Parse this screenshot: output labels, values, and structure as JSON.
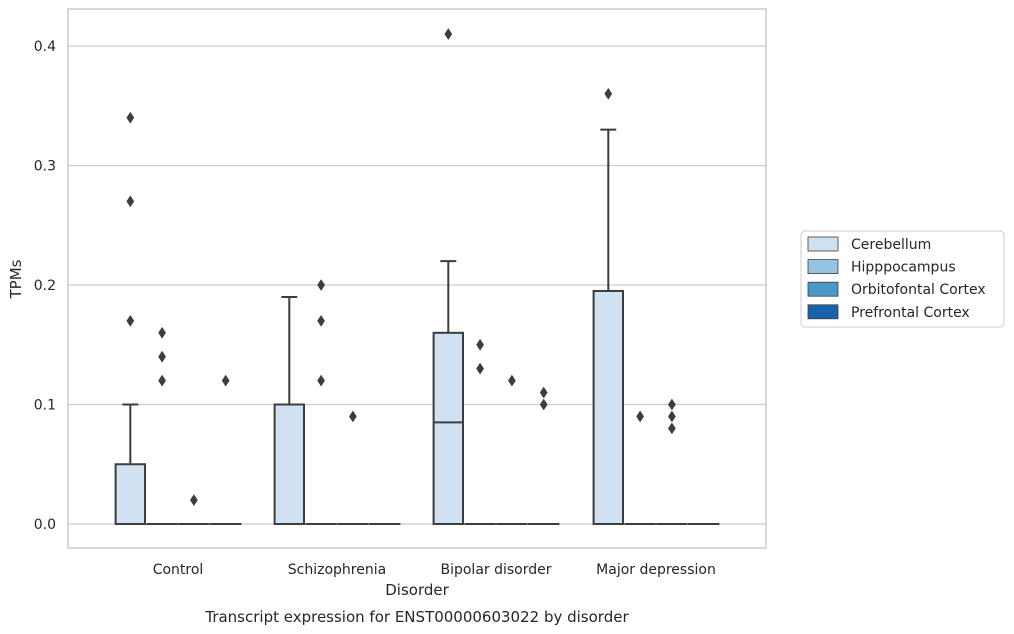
{
  "chart_data": {
    "type": "box",
    "title": "",
    "caption": "Transcript expression for ENST00000603022 by disorder",
    "xlabel": "Disorder",
    "ylabel": "TPMs",
    "ylim": [
      -0.02,
      0.43
    ],
    "yticks": [
      0.0,
      0.1,
      0.2,
      0.3,
      0.4
    ],
    "ytick_labels": [
      "0.0",
      "0.1",
      "0.2",
      "0.3",
      "0.4"
    ],
    "grid": "horizontal",
    "legend_position": "right",
    "categories": [
      "Control",
      "Schizophrenia",
      "Bipolar disorder",
      "Major depression"
    ],
    "series": [
      {
        "name": "Cerebellum",
        "color": "#d0e1f2",
        "boxes": [
          {
            "q1": 0.0,
            "median": 0.0,
            "q3": 0.05,
            "whisker_low": 0.0,
            "whisker_high": 0.1,
            "outliers": [
              0.34,
              0.27,
              0.17
            ]
          },
          {
            "q1": 0.0,
            "median": 0.0,
            "q3": 0.1,
            "whisker_low": 0.0,
            "whisker_high": 0.19,
            "outliers": []
          },
          {
            "q1": 0.0,
            "median": 0.085,
            "q3": 0.16,
            "whisker_low": 0.0,
            "whisker_high": 0.22,
            "outliers": [
              0.41
            ]
          },
          {
            "q1": 0.0,
            "median": 0.0,
            "q3": 0.195,
            "whisker_low": 0.0,
            "whisker_high": 0.33,
            "outliers": [
              0.36
            ]
          }
        ]
      },
      {
        "name": "Hipppocampus",
        "color": "#94c4df",
        "boxes": [
          {
            "q1": 0.0,
            "median": 0.0,
            "q3": 0.0,
            "whisker_low": 0.0,
            "whisker_high": 0.0,
            "outliers": [
              0.16,
              0.14,
              0.12
            ]
          },
          {
            "q1": 0.0,
            "median": 0.0,
            "q3": 0.0,
            "whisker_low": 0.0,
            "whisker_high": 0.0,
            "outliers": [
              0.2,
              0.17,
              0.12
            ]
          },
          {
            "q1": 0.0,
            "median": 0.0,
            "q3": 0.0,
            "whisker_low": 0.0,
            "whisker_high": 0.0,
            "outliers": [
              0.15,
              0.13
            ]
          },
          {
            "q1": 0.0,
            "median": 0.0,
            "q3": 0.0,
            "whisker_low": 0.0,
            "whisker_high": 0.0,
            "outliers": [
              0.09
            ]
          }
        ]
      },
      {
        "name": "Orbitofontal Cortex",
        "color": "#4a98c9",
        "boxes": [
          {
            "q1": 0.0,
            "median": 0.0,
            "q3": 0.0,
            "whisker_low": 0.0,
            "whisker_high": 0.0,
            "outliers": [
              0.02
            ]
          },
          {
            "q1": 0.0,
            "median": 0.0,
            "q3": 0.0,
            "whisker_low": 0.0,
            "whisker_high": 0.0,
            "outliers": [
              0.09
            ]
          },
          {
            "q1": 0.0,
            "median": 0.0,
            "q3": 0.0,
            "whisker_low": 0.0,
            "whisker_high": 0.0,
            "outliers": [
              0.12
            ]
          },
          {
            "q1": 0.0,
            "median": 0.0,
            "q3": 0.0,
            "whisker_low": 0.0,
            "whisker_high": 0.0,
            "outliers": [
              0.1,
              0.09,
              0.08
            ]
          }
        ]
      },
      {
        "name": "Prefrontal Cortex",
        "color": "#1764ab",
        "boxes": [
          {
            "q1": 0.0,
            "median": 0.0,
            "q3": 0.0,
            "whisker_low": 0.0,
            "whisker_high": 0.0,
            "outliers": [
              0.12
            ]
          },
          {
            "q1": 0.0,
            "median": 0.0,
            "q3": 0.0,
            "whisker_low": 0.0,
            "whisker_high": 0.0,
            "outliers": []
          },
          {
            "q1": 0.0,
            "median": 0.0,
            "q3": 0.0,
            "whisker_low": 0.0,
            "whisker_high": 0.0,
            "outliers": [
              0.11,
              0.1
            ]
          },
          {
            "q1": 0.0,
            "median": 0.0,
            "q3": 0.0,
            "whisker_low": 0.0,
            "whisker_high": 0.0,
            "outliers": []
          }
        ]
      }
    ]
  },
  "colors": {
    "grid": "#cccccc",
    "frame": "#cccccc",
    "box_edge": "#3d3d3d",
    "text": "#262626"
  }
}
